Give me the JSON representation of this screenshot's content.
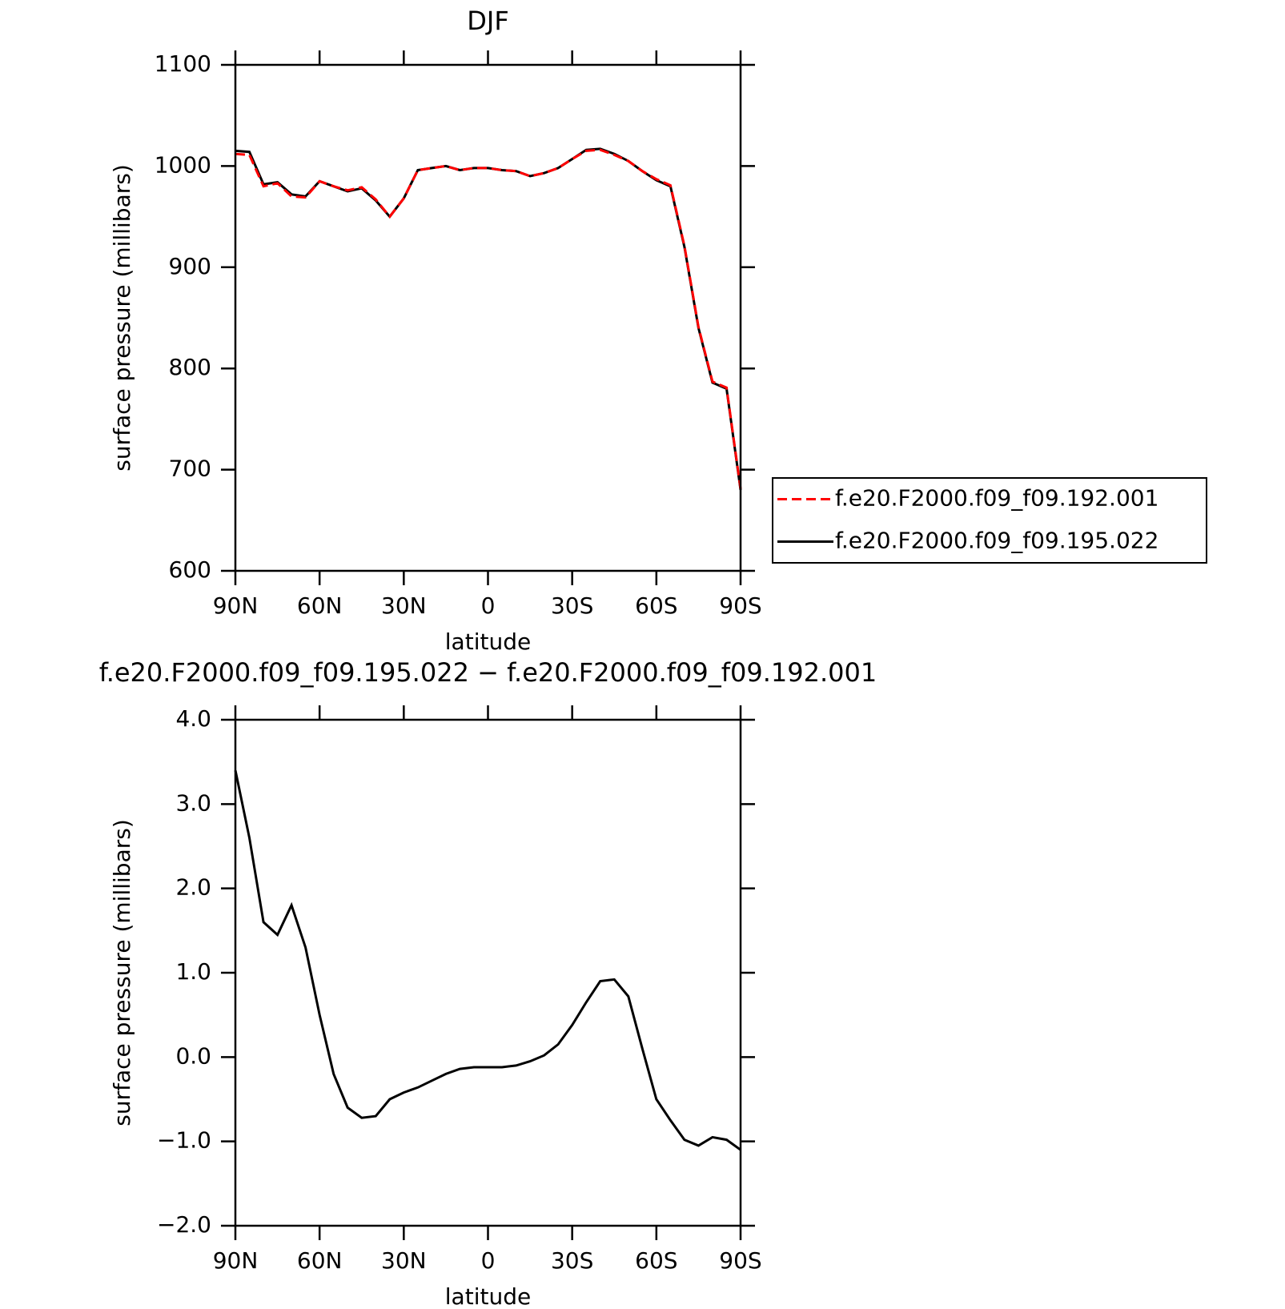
{
  "chart_data": [
    {
      "type": "line",
      "title": "DJF",
      "x_label": "latitude",
      "y_label": "surface pressure (millibars)",
      "x": [
        90,
        85,
        80,
        75,
        70,
        65,
        60,
        55,
        50,
        45,
        40,
        35,
        30,
        25,
        20,
        15,
        10,
        5,
        0,
        -5,
        -10,
        -15,
        -20,
        -25,
        -30,
        -35,
        -40,
        -45,
        -50,
        -55,
        -60,
        -65,
        -70,
        -75,
        -80,
        -85,
        -90
      ],
      "series": [
        {
          "name": "f.e20.F2000.f09_f09.192.001",
          "color": "#ff0000",
          "line_style": "dashed",
          "values": [
            1012,
            1011,
            980,
            983,
            970,
            969,
            985,
            980,
            976,
            979,
            967,
            950,
            968,
            996,
            998,
            1000,
            996,
            998,
            998,
            996,
            995,
            990,
            993,
            998,
            1007,
            1015,
            1016,
            1011,
            1005,
            995,
            987,
            981,
            921,
            841,
            787,
            781,
            681
          ]
        },
        {
          "name": "f.e20.F2000.f09_f09.195.022",
          "color": "#000000",
          "line_style": "solid",
          "values": [
            1015,
            1014,
            982,
            984,
            972,
            970,
            985,
            980,
            975,
            978,
            966,
            950,
            968,
            996,
            998,
            1000,
            996,
            998,
            998,
            996,
            995,
            990,
            993,
            998,
            1007,
            1016,
            1017,
            1012,
            1005,
            995,
            986,
            980,
            920,
            840,
            786,
            780,
            680
          ]
        }
      ],
      "xlim": [
        90,
        -90
      ],
      "xticks": [
        {
          "value": 90,
          "label": "90N"
        },
        {
          "value": 60,
          "label": "60N"
        },
        {
          "value": 30,
          "label": "30N"
        },
        0,
        {
          "value": -30,
          "label": "30S"
        },
        {
          "value": -60,
          "label": "60S"
        },
        {
          "value": -90,
          "label": "90S"
        }
      ],
      "ylim": [
        600,
        1100
      ],
      "yticks": [
        600,
        700,
        800,
        900,
        1000,
        1100
      ],
      "legend": "right"
    },
    {
      "type": "line",
      "title": "f.e20.F2000.f09_f09.195.022 − f.e20.F2000.f09_f09.192.001",
      "x_label": "latitude",
      "y_label": "surface pressure (millibars)",
      "x": [
        90,
        85,
        80,
        75,
        70,
        65,
        60,
        55,
        50,
        45,
        40,
        35,
        30,
        25,
        20,
        15,
        10,
        5,
        0,
        -5,
        -10,
        -15,
        -20,
        -25,
        -30,
        -35,
        -40,
        -45,
        -50,
        -55,
        -60,
        -65,
        -70,
        -75,
        -80,
        -85,
        -90
      ],
      "series": [
        {
          "color": "#000000",
          "line_style": "solid",
          "values": [
            3.4,
            2.6,
            1.6,
            1.45,
            1.8,
            1.3,
            0.5,
            -0.2,
            -0.6,
            -0.72,
            -0.7,
            -0.5,
            -0.42,
            -0.36,
            -0.28,
            -0.2,
            -0.14,
            -0.12,
            -0.12,
            -0.12,
            -0.1,
            -0.05,
            0.02,
            0.15,
            0.38,
            0.65,
            0.9,
            0.92,
            0.72,
            0.1,
            -0.5,
            -0.75,
            -0.98,
            -1.05,
            -0.95,
            -0.98,
            -1.1
          ]
        }
      ],
      "xlim": [
        90,
        -90
      ],
      "xticks": [
        {
          "value": 90,
          "label": "90N"
        },
        {
          "value": 60,
          "label": "60N"
        },
        {
          "value": 30,
          "label": "30N"
        },
        0,
        {
          "value": -30,
          "label": "30S"
        },
        {
          "value": -60,
          "label": "60S"
        },
        {
          "value": -90,
          "label": "90S"
        }
      ],
      "ylim": [
        -2,
        4
      ],
      "yticks": [
        {
          "value": -2,
          "label": "−2.0"
        },
        {
          "value": -1,
          "label": "−1.0"
        },
        {
          "value": 0,
          "label": "0.0"
        },
        {
          "value": 1,
          "label": "1.0"
        },
        {
          "value": 2,
          "label": "2.0"
        },
        {
          "value": 3,
          "label": "3.0"
        },
        {
          "value": 4,
          "label": "4.0"
        }
      ]
    }
  ]
}
